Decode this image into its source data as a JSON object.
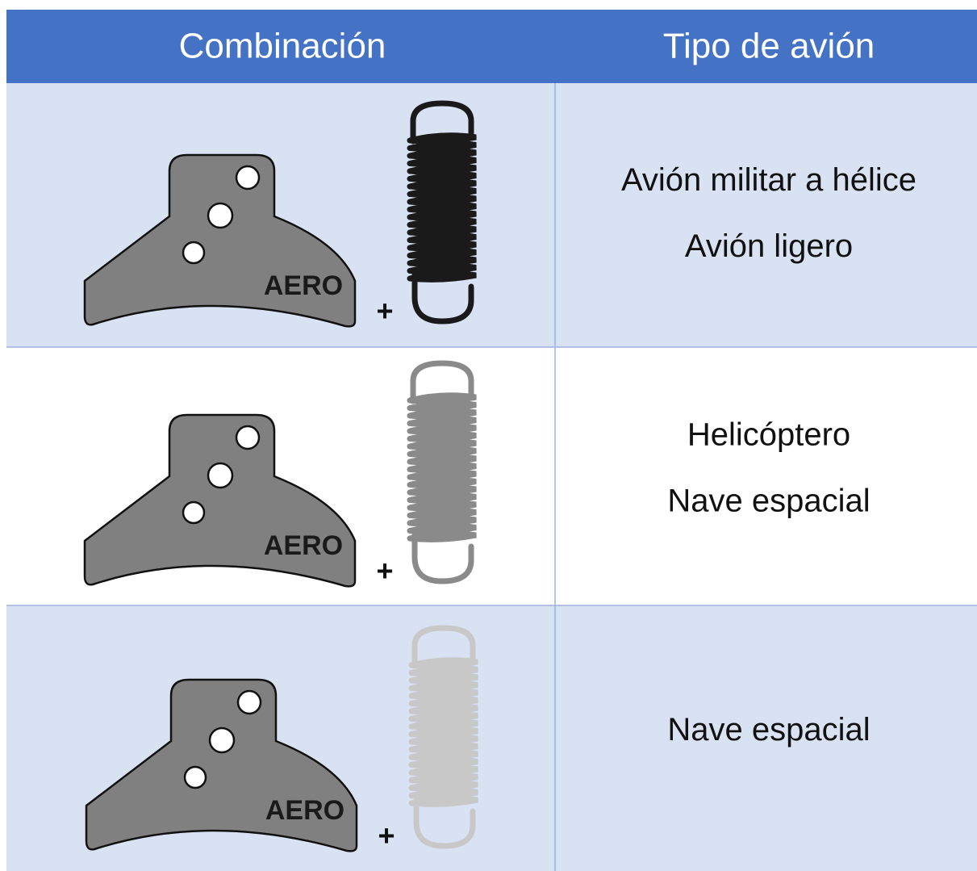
{
  "header": {
    "columns": [
      "Combinación",
      "Tipo de avión"
    ]
  },
  "rows": [
    {
      "piece_label": "AERO",
      "plus": "+",
      "spring_color": "#1a1a1a",
      "types": [
        "Avión militar a hélice",
        "Avión ligero"
      ]
    },
    {
      "piece_label": "AERO",
      "plus": "+",
      "spring_color": "#8a8a8a",
      "types": [
        "Helicóptero",
        "Nave espacial"
      ]
    },
    {
      "piece_label": "AERO",
      "plus": "+",
      "spring_color": "#c8c8c8",
      "types": [
        "Nave espacial"
      ]
    }
  ]
}
